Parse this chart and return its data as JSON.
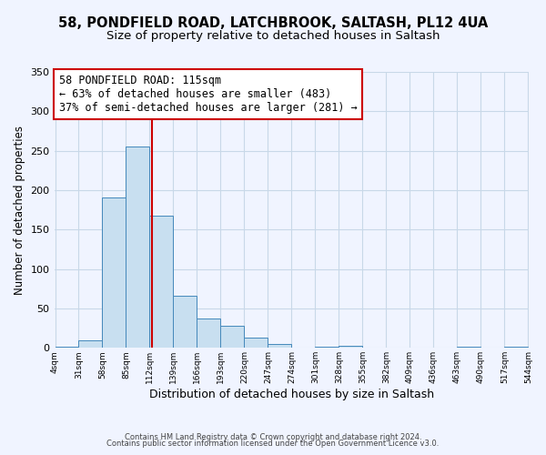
{
  "title1": "58, PONDFIELD ROAD, LATCHBROOK, SALTASH, PL12 4UA",
  "title2": "Size of property relative to detached houses in Saltash",
  "xlabel": "Distribution of detached houses by size in Saltash",
  "ylabel": "Number of detached properties",
  "bin_edges": [
    4,
    31,
    58,
    85,
    112,
    139,
    166,
    193,
    220,
    247,
    274,
    301,
    328,
    355,
    382,
    409,
    436,
    463,
    490,
    517,
    544
  ],
  "bar_heights": [
    2,
    10,
    191,
    255,
    168,
    66,
    37,
    28,
    13,
    5,
    0,
    2,
    3,
    0,
    0,
    0,
    0,
    1,
    0,
    2
  ],
  "bar_facecolor": "#c8dff0",
  "bar_edgecolor": "#4488bb",
  "vline_x": 115,
  "vline_color": "#cc0000",
  "annotation_line1": "58 PONDFIELD ROAD: 115sqm",
  "annotation_line2": "← 63% of detached houses are smaller (483)",
  "annotation_line3": "37% of semi-detached houses are larger (281) →",
  "annotation_boxcolor": "white",
  "annotation_boxedgecolor": "#cc0000",
  "ylim": [
    0,
    350
  ],
  "yticks": [
    0,
    50,
    100,
    150,
    200,
    250,
    300,
    350
  ],
  "xtick_labels": [
    "4sqm",
    "31sqm",
    "58sqm",
    "85sqm",
    "112sqm",
    "139sqm",
    "166sqm",
    "193sqm",
    "220sqm",
    "247sqm",
    "274sqm",
    "301sqm",
    "328sqm",
    "355sqm",
    "382sqm",
    "409sqm",
    "436sqm",
    "463sqm",
    "490sqm",
    "517sqm",
    "544sqm"
  ],
  "footer1": "Contains HM Land Registry data © Crown copyright and database right 2024.",
  "footer2": "Contains public sector information licensed under the Open Government Licence v3.0.",
  "bg_color": "#f0f4ff",
  "grid_color": "#c8d8e8",
  "title_fontsize": 10.5,
  "subtitle_fontsize": 9.5,
  "annotation_fontsize": 8.5,
  "footer_fontsize": 6.0
}
